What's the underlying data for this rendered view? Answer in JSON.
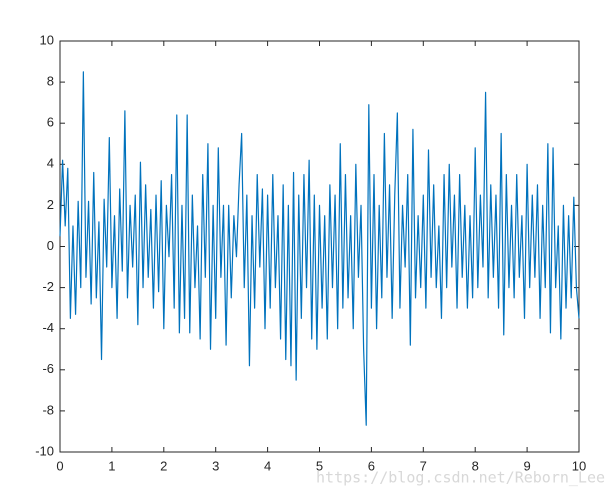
{
  "chart_data": {
    "type": "line",
    "watermark": "https://blog.csdn.net/Reborn_Lee",
    "x": [
      0,
      0.05,
      0.1,
      0.15,
      0.2,
      0.25,
      0.3,
      0.35,
      0.4,
      0.45,
      0.5,
      0.55,
      0.6,
      0.65,
      0.7,
      0.75,
      0.8,
      0.85,
      0.9,
      0.95,
      1,
      1.05,
      1.1,
      1.15,
      1.2,
      1.25,
      1.3,
      1.35,
      1.4,
      1.45,
      1.5,
      1.55,
      1.6,
      1.65,
      1.7,
      1.75,
      1.8,
      1.85,
      1.9,
      1.95,
      2,
      2.05,
      2.1,
      2.15,
      2.2,
      2.25,
      2.3,
      2.35,
      2.4,
      2.45,
      2.5,
      2.55,
      2.6,
      2.65,
      2.7,
      2.75,
      2.8,
      2.85,
      2.9,
      2.95,
      3,
      3.05,
      3.1,
      3.15,
      3.2,
      3.25,
      3.3,
      3.35,
      3.4,
      3.45,
      3.5,
      3.55,
      3.6,
      3.65,
      3.7,
      3.75,
      3.8,
      3.85,
      3.9,
      3.95,
      4,
      4.05,
      4.1,
      4.15,
      4.2,
      4.25,
      4.3,
      4.35,
      4.4,
      4.45,
      4.5,
      4.55,
      4.6,
      4.65,
      4.7,
      4.75,
      4.8,
      4.85,
      4.9,
      4.95,
      5,
      5.05,
      5.1,
      5.15,
      5.2,
      5.25,
      5.3,
      5.35,
      5.4,
      5.45,
      5.5,
      5.55,
      5.6,
      5.65,
      5.7,
      5.75,
      5.8,
      5.85,
      5.9,
      5.95,
      6,
      6.05,
      6.1,
      6.15,
      6.2,
      6.25,
      6.3,
      6.35,
      6.4,
      6.45,
      6.5,
      6.55,
      6.6,
      6.65,
      6.7,
      6.75,
      6.8,
      6.85,
      6.9,
      6.95,
      7,
      7.05,
      7.1,
      7.15,
      7.2,
      7.25,
      7.3,
      7.35,
      7.4,
      7.45,
      7.5,
      7.55,
      7.6,
      7.65,
      7.7,
      7.75,
      7.8,
      7.85,
      7.9,
      7.95,
      8,
      8.05,
      8.1,
      8.15,
      8.2,
      8.25,
      8.3,
      8.35,
      8.4,
      8.45,
      8.5,
      8.55,
      8.6,
      8.65,
      8.7,
      8.75,
      8.8,
      8.85,
      8.9,
      8.95,
      9,
      9.05,
      9.1,
      9.15,
      9.2,
      9.25,
      9.3,
      9.35,
      9.4,
      9.45,
      9.5,
      9.55,
      9.6,
      9.65,
      9.7,
      9.75,
      9.8,
      9.85,
      9.9,
      9.95,
      10
    ],
    "series": [
      {
        "color": "#0072bd",
        "values": [
          0.5,
          4.2,
          1.0,
          3.8,
          -3.5,
          1.0,
          -3.3,
          2.2,
          -2.0,
          8.5,
          -1.5,
          2.2,
          -2.8,
          3.6,
          -2.5,
          1.2,
          -5.5,
          2.3,
          -1.0,
          5.3,
          -2.0,
          1.5,
          -3.5,
          2.8,
          -1.2,
          6.6,
          -2.5,
          2.0,
          -1.0,
          2.5,
          -3.8,
          4.1,
          -2.0,
          3.0,
          -1.5,
          1.8,
          -3.0,
          2.5,
          -2.2,
          3.2,
          -4.0,
          2.0,
          -0.5,
          3.5,
          -3.0,
          6.4,
          -4.2,
          2.0,
          -3.5,
          6.4,
          -4.2,
          2.5,
          -2.0,
          1.0,
          -4.5,
          3.5,
          -1.5,
          5.0,
          -5.0,
          2.0,
          -3.5,
          4.8,
          -1.5,
          2.0,
          -4.8,
          2.0,
          -2.5,
          1.5,
          -0.5,
          3.0,
          5.5,
          -2.0,
          2.5,
          -5.8,
          1.5,
          -3.0,
          3.5,
          -1.0,
          2.8,
          -4.0,
          2.5,
          -3.0,
          3.5,
          -2.0,
          1.5,
          -4.5,
          3.0,
          -5.5,
          2.0,
          -5.8,
          3.6,
          -6.5,
          2.5,
          -3.5,
          3.5,
          -2.0,
          4.2,
          -4.5,
          2.5,
          -5.0,
          2.0,
          -3.0,
          1.5,
          -4.5,
          3.0,
          -2.0,
          2.5,
          -4.0,
          5.0,
          -3.0,
          3.5,
          -2.5,
          1.5,
          -4.0,
          4.0,
          -1.5,
          2.0,
          -5.0,
          -8.7,
          6.9,
          -3.0,
          3.5,
          -4.0,
          2.0,
          -2.5,
          5.5,
          -1.5,
          3.0,
          -3.5,
          2.5,
          6.5,
          -3.0,
          2.0,
          -1.0,
          3.5,
          -4.8,
          5.7,
          -2.5,
          1.5,
          -2.0,
          2.5,
          -3.0,
          4.7,
          -1.5,
          3.0,
          -2.0,
          1.0,
          -3.5,
          3.5,
          -2.0,
          4.0,
          -1.0,
          2.5,
          -3.0,
          3.5,
          -1.5,
          2.0,
          -3.0,
          1.5,
          -2.5,
          4.8,
          -2.0,
          2.5,
          -1.0,
          7.5,
          -2.5,
          3.0,
          -1.5,
          2.5,
          -3.0,
          5.5,
          -4.3,
          3.5,
          -2.0,
          2.0,
          -2.5,
          3.5,
          -1.5,
          1.5,
          -3.5,
          4.0,
          -2.0,
          2.5,
          -1.5,
          3.0,
          -3.5,
          2.0,
          -2.0,
          5.0,
          -4.2,
          4.8,
          -2.0,
          1.0,
          -4.5,
          2.0,
          -3.0,
          1.5,
          -2.5,
          2.4,
          -2.0,
          -3.5
        ]
      }
    ],
    "xlim": [
      0,
      10
    ],
    "ylim": [
      -10,
      10
    ],
    "xticks": [
      0,
      1,
      2,
      3,
      4,
      5,
      6,
      7,
      8,
      9,
      10
    ],
    "yticks": [
      -10,
      -8,
      -6,
      -4,
      -2,
      0,
      2,
      4,
      6,
      8,
      10
    ],
    "grid": false
  }
}
